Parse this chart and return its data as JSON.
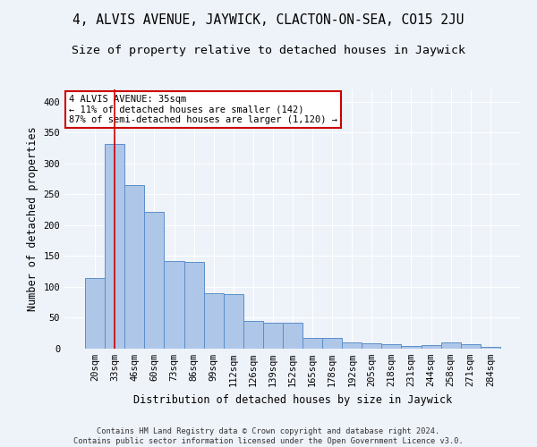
{
  "title": "4, ALVIS AVENUE, JAYWICK, CLACTON-ON-SEA, CO15 2JU",
  "subtitle": "Size of property relative to detached houses in Jaywick",
  "xlabel": "Distribution of detached houses by size in Jaywick",
  "ylabel": "Number of detached properties",
  "categories": [
    "20sqm",
    "33sqm",
    "46sqm",
    "60sqm",
    "73sqm",
    "86sqm",
    "99sqm",
    "112sqm",
    "126sqm",
    "139sqm",
    "152sqm",
    "165sqm",
    "178sqm",
    "192sqm",
    "205sqm",
    "218sqm",
    "231sqm",
    "244sqm",
    "258sqm",
    "271sqm",
    "284sqm"
  ],
  "values": [
    115,
    332,
    265,
    222,
    142,
    141,
    90,
    88,
    45,
    42,
    42,
    18,
    18,
    10,
    9,
    7,
    5,
    6,
    10,
    7,
    3
  ],
  "bar_color": "#aec6e8",
  "bar_edge_color": "#5b8fc9",
  "vline_x": 1,
  "vline_color": "#cc0000",
  "annotation_lines": [
    "4 ALVIS AVENUE: 35sqm",
    "← 11% of detached houses are smaller (142)",
    "87% of semi-detached houses are larger (1,120) →"
  ],
  "annotation_box_color": "#ffffff",
  "annotation_box_edge_color": "#cc0000",
  "ylim": [
    0,
    420
  ],
  "yticks": [
    0,
    50,
    100,
    150,
    200,
    250,
    300,
    350,
    400
  ],
  "title_fontsize": 10.5,
  "subtitle_fontsize": 9.5,
  "tick_fontsize": 7.5,
  "ylabel_fontsize": 8.5,
  "xlabel_fontsize": 8.5,
  "footer_line1": "Contains HM Land Registry data © Crown copyright and database right 2024.",
  "footer_line2": "Contains public sector information licensed under the Open Government Licence v3.0.",
  "bg_color": "#eef2f9",
  "plot_bg_color": "#eef2f9"
}
